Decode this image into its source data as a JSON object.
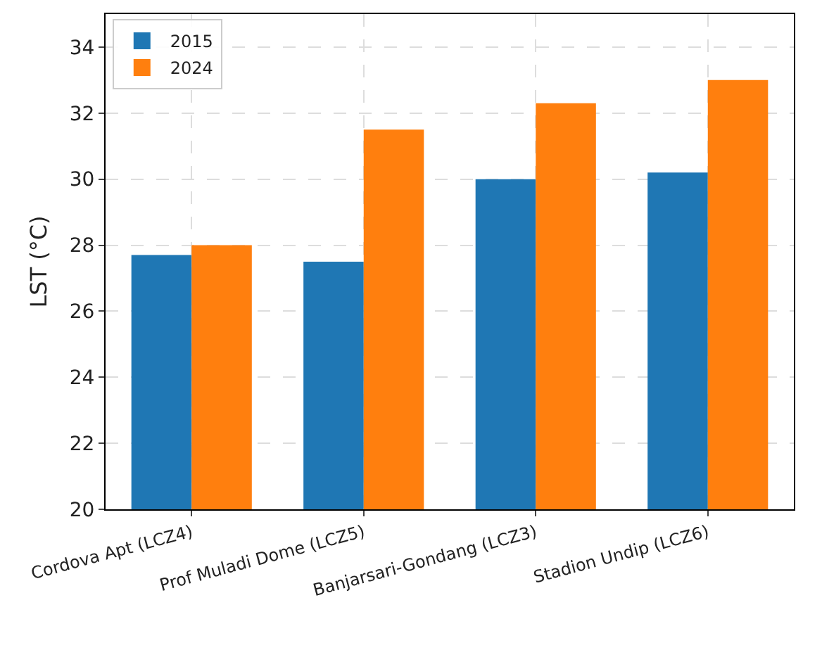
{
  "chart_data": {
    "type": "bar",
    "ylabel": "LST (°C)",
    "categories": [
      "Cordova Apt (LCZ4)",
      "Prof Muladi Dome (LCZ5)",
      "Banjarsari-Gondang (LCZ3)",
      "Stadion Undip (LCZ6)"
    ],
    "series": [
      {
        "name": "2015",
        "color": "#1f77b4",
        "values": [
          27.7,
          27.5,
          30.0,
          30.2
        ]
      },
      {
        "name": "2024",
        "color": "#ff7f0e",
        "values": [
          28.0,
          31.5,
          32.3,
          33.0
        ]
      }
    ],
    "ylim": [
      20,
      35
    ],
    "yticks": [
      20,
      22,
      24,
      26,
      28,
      30,
      32,
      34
    ],
    "grid": true,
    "legend": "top left"
  }
}
